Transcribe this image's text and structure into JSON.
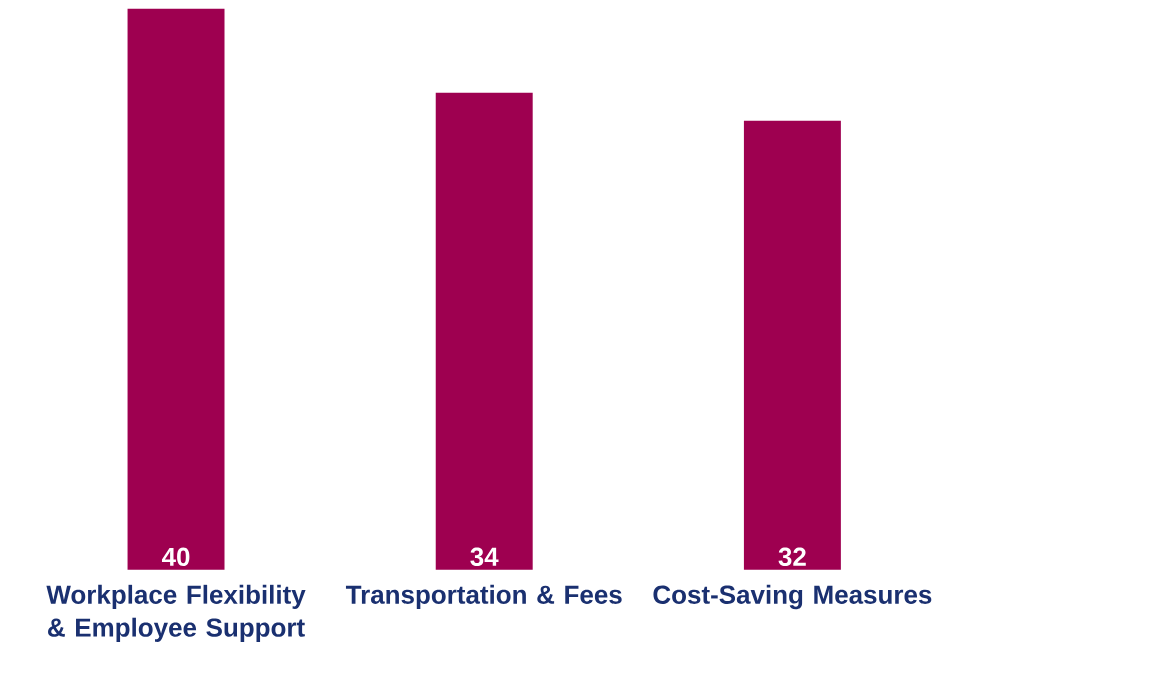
{
  "chart_data": {
    "type": "bar",
    "categories": [
      "Workplace Flexibility & Employee Support",
      "Transportation & Fees",
      "Cost-Saving Measures"
    ],
    "values": [
      40,
      34,
      32
    ],
    "color": "#9e0050",
    "data_labels": true
  }
}
